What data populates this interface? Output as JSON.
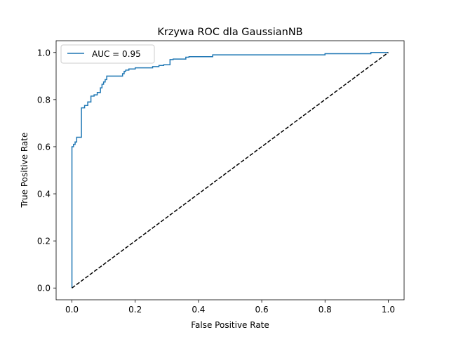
{
  "chart_data": {
    "type": "line",
    "title": "Krzywa ROC dla GaussianNB",
    "xlabel": "False Positive Rate",
    "ylabel": "True Positive Rate",
    "xlim": [
      -0.05,
      1.05
    ],
    "ylim": [
      -0.05,
      1.05
    ],
    "xticks": [
      0.0,
      0.2,
      0.4,
      0.6,
      0.8,
      1.0
    ],
    "yticks": [
      0.0,
      0.2,
      0.4,
      0.6,
      0.8,
      1.0
    ],
    "xtick_labels": [
      "0.0",
      "0.2",
      "0.4",
      "0.6",
      "0.8",
      "1.0"
    ],
    "ytick_labels": [
      "0.0",
      "0.2",
      "0.4",
      "0.6",
      "0.8",
      "1.0"
    ],
    "legend_position": "top-left",
    "series": [
      {
        "name": "AUC = 0.95",
        "color": "#1f77b4",
        "style": "solid",
        "show_in_legend": true,
        "x": [
          0.0,
          0.0,
          0.005,
          0.005,
          0.01,
          0.01,
          0.015,
          0.015,
          0.03,
          0.03,
          0.04,
          0.04,
          0.05,
          0.05,
          0.06,
          0.06,
          0.07,
          0.07,
          0.08,
          0.08,
          0.09,
          0.09,
          0.095,
          0.095,
          0.1,
          0.1,
          0.105,
          0.105,
          0.11,
          0.11,
          0.16,
          0.16,
          0.165,
          0.165,
          0.17,
          0.17,
          0.18,
          0.18,
          0.2,
          0.2,
          0.255,
          0.255,
          0.275,
          0.275,
          0.29,
          0.29,
          0.31,
          0.31,
          0.32,
          0.32,
          0.36,
          0.36,
          0.37,
          0.37,
          0.445,
          0.445,
          0.47,
          0.47,
          0.8,
          0.8,
          0.945,
          0.945,
          1.0
        ],
        "y": [
          0.0,
          0.6,
          0.6,
          0.61,
          0.61,
          0.62,
          0.62,
          0.64,
          0.64,
          0.765,
          0.765,
          0.775,
          0.775,
          0.79,
          0.79,
          0.815,
          0.815,
          0.82,
          0.82,
          0.83,
          0.83,
          0.85,
          0.85,
          0.865,
          0.865,
          0.875,
          0.875,
          0.885,
          0.885,
          0.9,
          0.9,
          0.91,
          0.91,
          0.92,
          0.92,
          0.925,
          0.925,
          0.93,
          0.93,
          0.935,
          0.935,
          0.94,
          0.94,
          0.945,
          0.945,
          0.948,
          0.948,
          0.97,
          0.97,
          0.972,
          0.972,
          0.98,
          0.98,
          0.982,
          0.982,
          0.99,
          0.99,
          0.99,
          0.99,
          0.995,
          0.995,
          1.0,
          1.0
        ]
      },
      {
        "name": "random-baseline",
        "color": "#000000",
        "style": "dashed",
        "show_in_legend": false,
        "x": [
          0.0,
          1.0
        ],
        "y": [
          0.0,
          1.0
        ]
      }
    ]
  }
}
